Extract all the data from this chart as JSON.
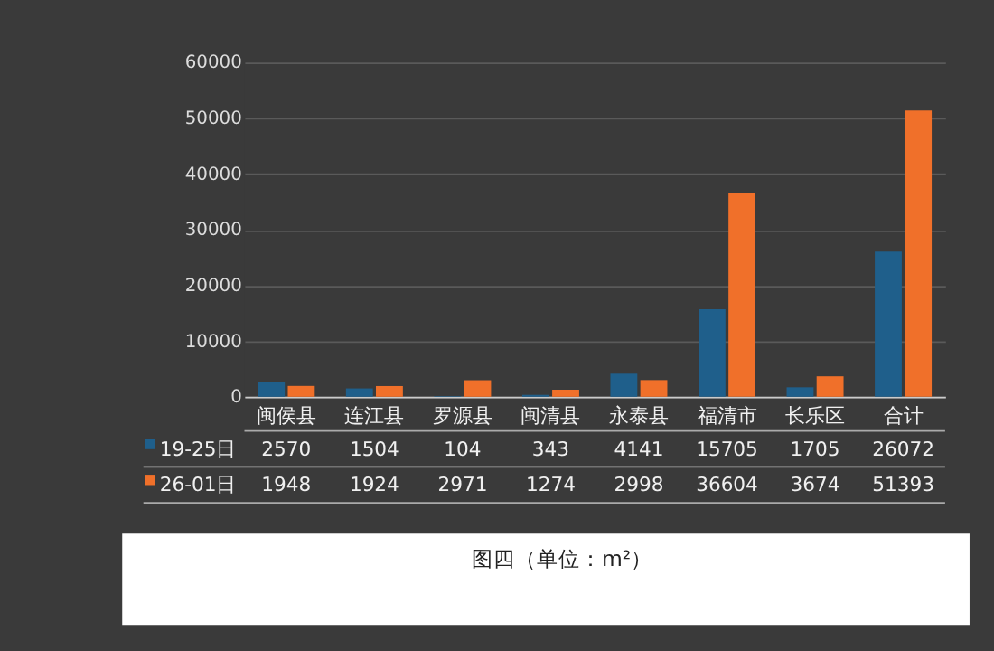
{
  "chart_data": {
    "type": "bar",
    "categories": [
      "闽侯县",
      "连江县",
      "罗源县",
      "闽清县",
      "永泰县",
      "福清市",
      "长乐区",
      "合计"
    ],
    "series": [
      {
        "name": "19-25日",
        "color": "#1f5f8b",
        "values": [
          2570,
          1504,
          104,
          343,
          4141,
          15705,
          1705,
          26072
        ]
      },
      {
        "name": "26-01日",
        "color": "#f0702a",
        "values": [
          1948,
          1924,
          2971,
          1274,
          2998,
          36604,
          3674,
          51393
        ]
      }
    ],
    "ylim": [
      0,
      60000
    ],
    "yticks": [
      0,
      10000,
      20000,
      30000,
      40000,
      50000,
      60000
    ],
    "grid": "y",
    "data_labels": true,
    "legend": "bottom",
    "annotations": [
      "图四（单位：m²）"
    ]
  }
}
